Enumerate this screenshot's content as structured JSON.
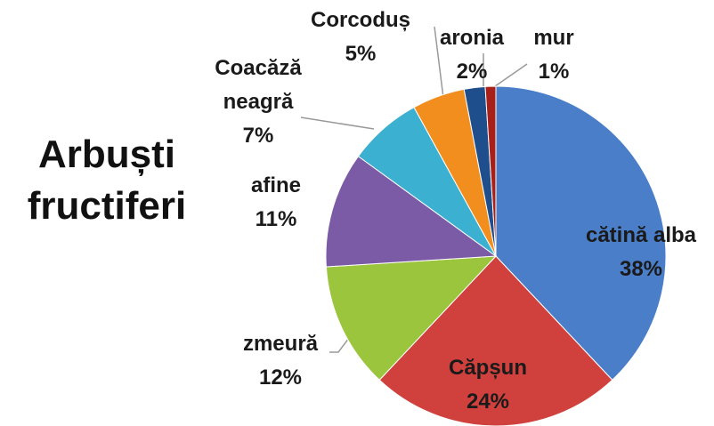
{
  "chart_data": {
    "type": "pie",
    "title": "Arbuști fructiferi",
    "categories": [
      "cătină alba",
      "Căpșun",
      "zmeură",
      "afine",
      "Coacăză neagră",
      "Corcoduș",
      "aronia",
      "mur"
    ],
    "values": [
      38,
      24,
      12,
      11,
      7,
      5,
      2,
      1
    ],
    "value_labels": [
      "38%",
      "24%",
      "12%",
      "11%",
      "7%",
      "5%",
      "2%",
      "1%"
    ],
    "colors": [
      "#4a7ec8",
      "#d0413d",
      "#9bc53d",
      "#7b5aa6",
      "#3bb0d0",
      "#f28e1e",
      "#1f4e8c",
      "#a8201a"
    ]
  }
}
